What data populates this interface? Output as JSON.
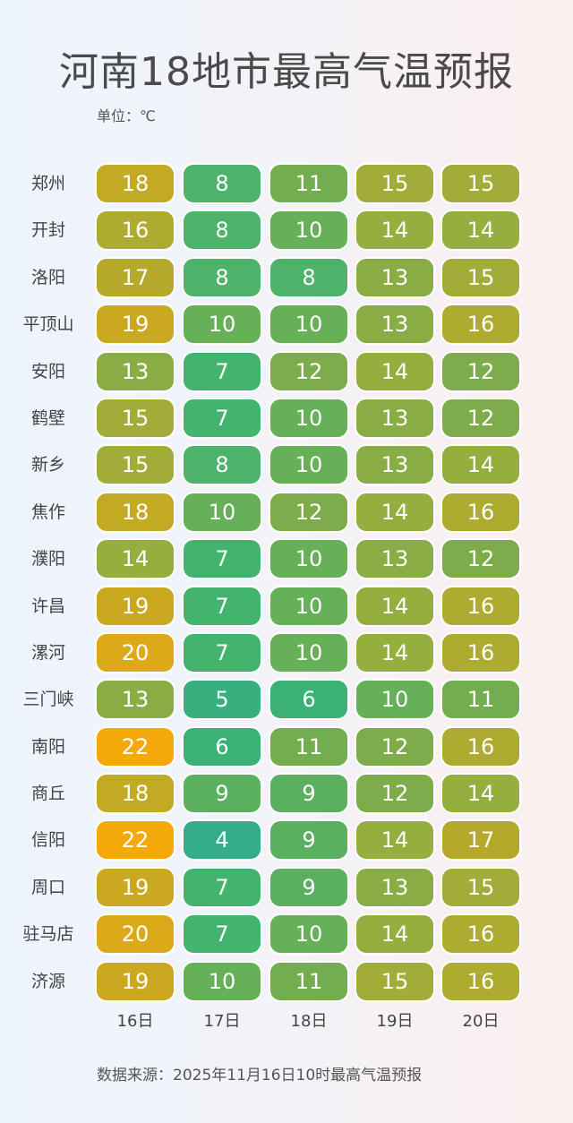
{
  "title": "河南18地市最高气温预报",
  "unit_label": "单位：℃",
  "source_note": "数据来源：2025年11月16日10时最高气温预报",
  "chart_data": {
    "type": "heatmap",
    "title": "河南18地市最高气温预报",
    "unit": "℃",
    "x": [
      "16日",
      "17日",
      "18日",
      "19日",
      "20日"
    ],
    "y": [
      "郑州",
      "开封",
      "洛阳",
      "平顶山",
      "安阳",
      "鹤壁",
      "新乡",
      "焦作",
      "濮阳",
      "许昌",
      "漯河",
      "三门峡",
      "南阳",
      "商丘",
      "信阳",
      "周口",
      "驻马店",
      "济源"
    ],
    "values": [
      [
        18,
        8,
        11,
        15,
        15
      ],
      [
        16,
        8,
        10,
        14,
        14
      ],
      [
        17,
        8,
        8,
        13,
        15
      ],
      [
        19,
        10,
        10,
        13,
        16
      ],
      [
        13,
        7,
        12,
        14,
        12
      ],
      [
        15,
        7,
        10,
        13,
        12
      ],
      [
        15,
        8,
        10,
        13,
        14
      ],
      [
        18,
        10,
        12,
        14,
        16
      ],
      [
        14,
        7,
        10,
        13,
        12
      ],
      [
        19,
        7,
        10,
        14,
        16
      ],
      [
        20,
        7,
        10,
        14,
        16
      ],
      [
        13,
        5,
        6,
        10,
        11
      ],
      [
        22,
        6,
        11,
        12,
        16
      ],
      [
        18,
        9,
        9,
        12,
        14
      ],
      [
        22,
        4,
        9,
        14,
        17
      ],
      [
        19,
        7,
        9,
        13,
        15
      ],
      [
        20,
        7,
        10,
        14,
        16
      ],
      [
        19,
        10,
        11,
        15,
        16
      ]
    ],
    "color_scale": {
      "4": "#34ae8a",
      "5": "#38b07e",
      "6": "#3cb176",
      "7": "#42b46e",
      "8": "#4db36a",
      "9": "#5bb05f",
      "10": "#66b058",
      "11": "#72ae50",
      "12": "#7eac4a",
      "13": "#8aac44",
      "14": "#96ae3e",
      "15": "#a2ac38",
      "16": "#aeac30",
      "17": "#b6a82a",
      "18": "#c2aa24",
      "19": "#caa820",
      "20": "#dcaa18",
      "21": "#e8a912",
      "22": "#f4a80a"
    },
    "xlabel": "",
    "ylabel": "",
    "legend": false
  }
}
